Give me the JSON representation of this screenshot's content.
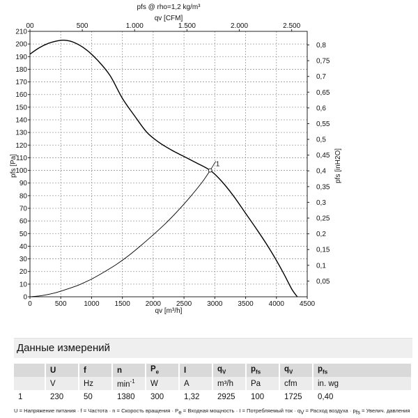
{
  "chart_data": {
    "type": "line",
    "title": "pfs @ rho=1,2 kg/m³",
    "xlabel": "qv [m³/h]",
    "ylabel": "pfs [Pa]",
    "x2label": "qv [CFM]",
    "y2label": "pfs [inH2O]",
    "xlim": [
      0,
      4500
    ],
    "ylim": [
      0,
      210
    ],
    "x_ticks": [
      0,
      500,
      1000,
      1500,
      2000,
      2500,
      3000,
      3500,
      4000,
      4500
    ],
    "x_tick_labels": [
      "0",
      "500",
      "1000",
      "1500",
      "2000",
      "2500",
      "3000",
      "3500",
      "4000",
      "4500"
    ],
    "y_ticks": [
      0,
      10,
      20,
      30,
      40,
      50,
      60,
      70,
      80,
      90,
      100,
      110,
      120,
      130,
      140,
      150,
      160,
      170,
      180,
      190,
      200,
      210
    ],
    "y_tick_labels": [
      "0",
      "10",
      "20",
      "30",
      "40",
      "50",
      "60",
      "70",
      "80",
      "90",
      "100",
      "110",
      "120",
      "130",
      "140",
      "150",
      "160",
      "170",
      "180",
      "190",
      "200",
      "210"
    ],
    "x2_ticks": [
      0,
      500,
      1000,
      1500,
      2000,
      2500
    ],
    "x2_tick_labels": [
      "00",
      "500",
      "1.000",
      "1.500",
      "2.000",
      "2.500"
    ],
    "x2_per_x": 0.5886,
    "y2_ticks": [
      0.05,
      0.1,
      0.15,
      0.2,
      0.25,
      0.3,
      0.35,
      0.4,
      0.45,
      0.5,
      0.55,
      0.6,
      0.65,
      0.7,
      0.75,
      0.8
    ],
    "y2_tick_labels": [
      "0,05",
      "0,1",
      "0,15",
      "0,2",
      "0,25",
      "0,3",
      "0,35",
      "0,4",
      "0,45",
      "0,5",
      "0,55",
      "0,6",
      "0,65",
      "0,7",
      "0,75",
      "0,8"
    ],
    "y2_per_y": 0.004015,
    "grid": true,
    "series": [
      {
        "x": [
          0,
          150,
          300,
          450,
          550,
          700,
          900,
          1100,
          1300,
          1500,
          1700,
          1900,
          2100,
          2300,
          2500,
          2700,
          2925,
          3100,
          3300,
          3500,
          3700,
          3900,
          4100,
          4250,
          4340
        ],
        "y": [
          192,
          197,
          200.5,
          202.5,
          203,
          201.5,
          196,
          187,
          175,
          157,
          143,
          130,
          122,
          116,
          111,
          106,
          100,
          92,
          80,
          66,
          52,
          37,
          20,
          6,
          0
        ]
      },
      {
        "x": [
          0,
          200,
          400,
          600,
          800,
          1000,
          1200,
          1400,
          1600,
          1800,
          2000,
          2200,
          2400,
          2600,
          2800,
          2925
        ],
        "y": [
          0,
          1,
          3,
          6,
          9.5,
          14,
          19.5,
          25.5,
          32.5,
          40.5,
          49,
          58,
          68,
          79,
          91,
          100
        ]
      }
    ],
    "operating_point": {
      "label": "1",
      "x": 2925,
      "y": 100
    }
  },
  "section_title": "Данные измерений",
  "table": {
    "headers": [
      "",
      "U",
      "f",
      "n",
      "P",
      "I",
      "q",
      "p",
      "q",
      "p"
    ],
    "header_subs": [
      "",
      "",
      "",
      "",
      "e",
      "",
      "V",
      "fs",
      "V",
      "fs"
    ],
    "units": [
      "",
      "V",
      "Hz",
      "min",
      "W",
      "A",
      "m³/h",
      "Pa",
      "cfm",
      "in. wg"
    ],
    "units_sups": [
      "",
      "",
      "",
      "-1",
      "",
      "",
      "",
      "",
      "",
      ""
    ],
    "rows": [
      [
        "1",
        "230",
        "50",
        "1380",
        "300",
        "1,32",
        "2925",
        "100",
        "1725",
        "0,40"
      ]
    ]
  },
  "legend_parts": [
    "U = Напряжение питания · f = Частота · n = Скорость вращения · P",
    "e",
    " = Входная мощность · I = Потребляемый ток · q",
    "V",
    " = Расход воздуха · p",
    "fs",
    " = Увелич. давления"
  ]
}
